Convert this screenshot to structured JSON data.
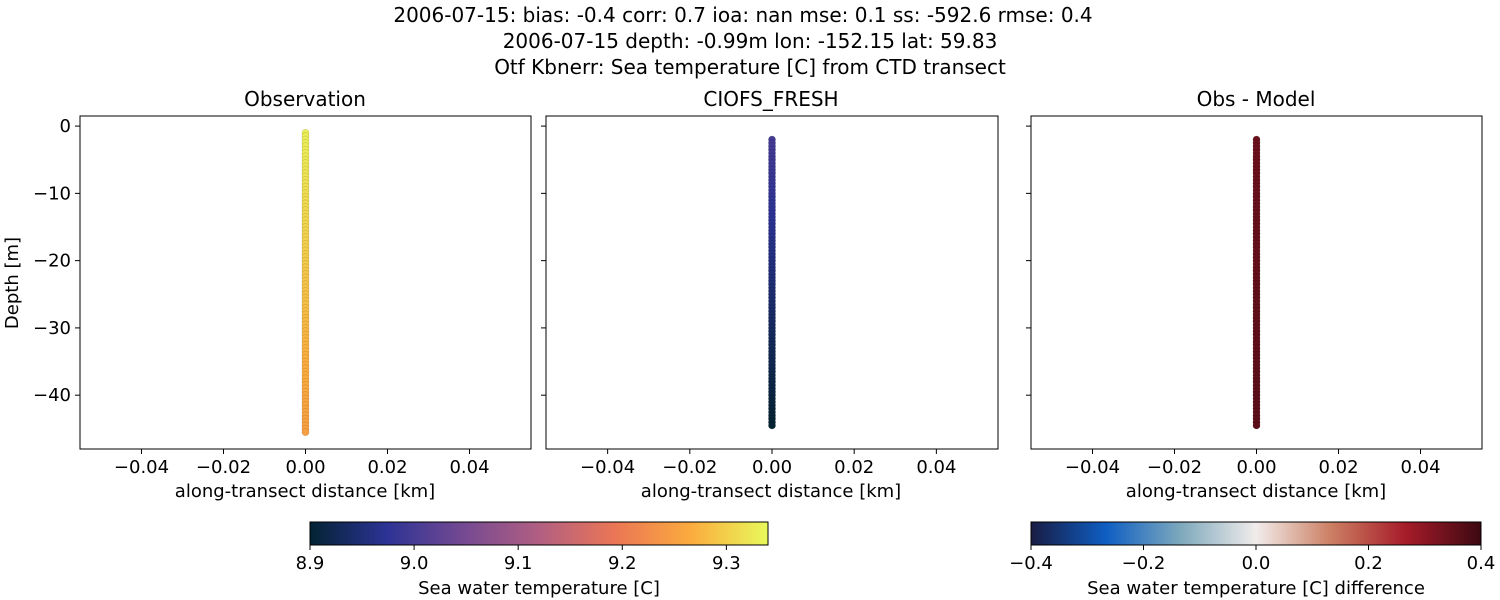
{
  "figure": {
    "title_lines": [
      "2006-07-15: bias: -0.4  corr: 0.7  ioa: nan  mse: 0.1  ss: -592.6  rmse: 0.4",
      "2006-07-15 depth: -0.99m lon: -152.15 lat: 59.83",
      "Otf Kbnerr: Sea temperature [C] from CTD transect"
    ]
  },
  "chart_data": [
    {
      "type": "scatter",
      "title": "Observation",
      "xlabel": "along-transect distance [km]",
      "ylabel": "Depth [m]",
      "xlim": [
        -0.055,
        0.055
      ],
      "ylim": [
        -48,
        1.5
      ],
      "xticks": [
        -0.04,
        -0.02,
        0.0,
        0.02,
        0.04
      ],
      "xtick_labels": [
        "−0.04",
        "−0.02",
        "0.00",
        "0.02",
        "0.04"
      ],
      "yticks": [
        0,
        -10,
        -20,
        -30,
        -40
      ],
      "ytick_labels": [
        "0",
        "−10",
        "−20",
        "−30",
        "−40"
      ],
      "x_value": 0.0,
      "depth_range": [
        -1,
        -45.5
      ],
      "color_value_range": [
        9.33,
        9.25
      ],
      "colormap": "thermal",
      "color_range": [
        8.9,
        9.34
      ]
    },
    {
      "type": "scatter",
      "title": "CIOFS_FRESH",
      "xlabel": "along-transect distance [km]",
      "ylabel": "",
      "xlim": [
        -0.055,
        0.055
      ],
      "ylim": [
        -48,
        1.5
      ],
      "xticks": [
        -0.04,
        -0.02,
        0.0,
        0.02,
        0.04
      ],
      "xtick_labels": [
        "−0.04",
        "−0.02",
        "0.00",
        "0.02",
        "0.04"
      ],
      "yticks": [
        0,
        -10,
        -20,
        -30,
        -40
      ],
      "ytick_labels": [
        "",
        "",
        "",
        "",
        ""
      ],
      "x_value": 0.0,
      "depth_range": [
        -2,
        -44.5
      ],
      "color_value_range": [
        9.0,
        8.9
      ],
      "colormap": "thermal",
      "color_range": [
        8.9,
        9.34
      ]
    },
    {
      "type": "scatter",
      "title": "Obs - Model",
      "xlabel": "along-transect distance [km]",
      "ylabel": "",
      "xlim": [
        -0.055,
        0.055
      ],
      "ylim": [
        -48,
        1.5
      ],
      "xticks": [
        -0.04,
        -0.02,
        0.0,
        0.02,
        0.04
      ],
      "xtick_labels": [
        "−0.04",
        "−0.02",
        "0.00",
        "0.02",
        "0.04"
      ],
      "yticks": [
        0,
        -10,
        -20,
        -30,
        -40
      ],
      "ytick_labels": [
        "",
        "",
        "",
        "",
        ""
      ],
      "x_value": 0.0,
      "depth_range": [
        -2,
        -44.5
      ],
      "color_value_range": [
        0.34,
        0.36
      ],
      "colormap": "balance",
      "color_range": [
        -0.4,
        0.4
      ]
    }
  ],
  "colorbars": [
    {
      "label": "Sea water temperature [C]",
      "colormap": "thermal",
      "range": [
        8.9,
        9.34
      ],
      "ticks": [
        8.9,
        9.0,
        9.1,
        9.2,
        9.3
      ],
      "tick_labels": [
        "8.9",
        "9.0",
        "9.1",
        "9.2",
        "9.3"
      ]
    },
    {
      "label": "Sea water temperature [C] difference",
      "colormap": "balance",
      "range": [
        -0.4,
        0.4
      ],
      "ticks": [
        -0.4,
        -0.2,
        0.0,
        0.2,
        0.4
      ],
      "tick_labels": [
        "−0.4",
        "−0.2",
        "0.0",
        "0.2",
        "0.4"
      ]
    }
  ],
  "colormaps": {
    "thermal": [
      "#042333",
      "#2c3395",
      "#744992",
      "#b15f82",
      "#eb7655",
      "#fbac3e",
      "#e8fa5b"
    ],
    "balance": [
      "#181c43",
      "#0f5ec3",
      "#7ea9bc",
      "#f1eceb",
      "#cc7f63",
      "#a61b29",
      "#3c0912"
    ]
  }
}
